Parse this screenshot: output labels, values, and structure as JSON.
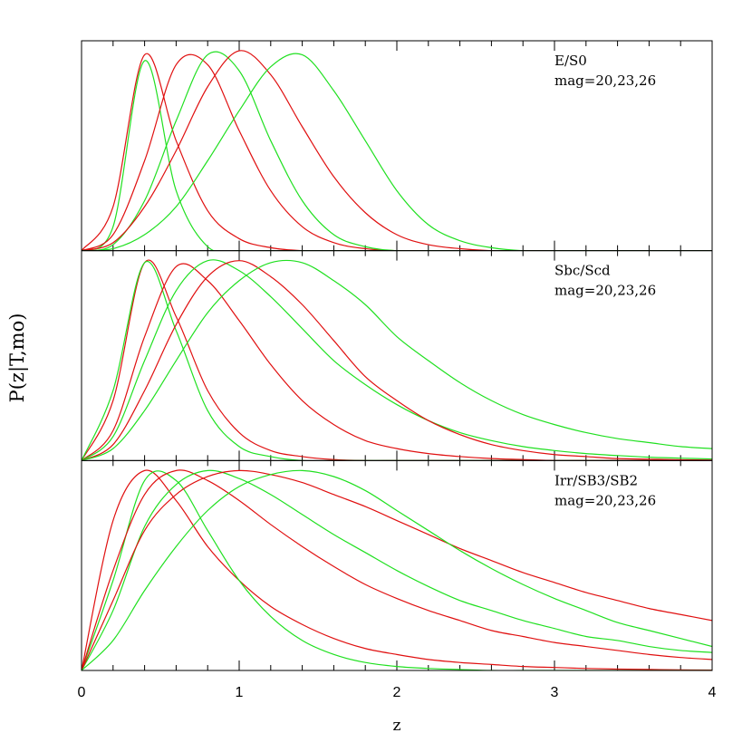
{
  "ylabel": "P(z|T,mo)",
  "xlabel": "z",
  "chart_data": [
    {
      "type": "line",
      "annotation": [
        "E/S0",
        "mag=20,23,26"
      ],
      "x": [
        0,
        0.2,
        0.4,
        0.6,
        0.8,
        1.0,
        1.2,
        1.4,
        1.6,
        1.8,
        2.0,
        2.2,
        2.4,
        2.6,
        2.8,
        3.0,
        3.2,
        3.4,
        3.6,
        3.8,
        4.0
      ],
      "xlim": [
        0,
        4
      ],
      "ylim": [
        0,
        1.05
      ],
      "xticks": [
        0,
        1,
        2,
        3,
        4
      ],
      "xminor_ticks": [
        0.2,
        0.4,
        0.6,
        0.8,
        1.2,
        1.4,
        1.6,
        1.8,
        2.2,
        2.4,
        2.6,
        2.8,
        3.2,
        3.4,
        3.6,
        3.8
      ],
      "series": [
        {
          "color": "#e01010",
          "values": [
            0,
            0.22,
            0.98,
            0.55,
            0.2,
            0.06,
            0.015,
            0,
            0,
            0,
            0,
            0,
            0,
            0,
            0,
            0,
            0,
            0,
            0,
            0,
            0
          ]
        },
        {
          "color": "#20e020",
          "values": [
            0,
            0.12,
            0.95,
            0.3,
            0.02,
            0,
            0,
            0,
            0,
            0,
            0,
            0,
            0,
            0,
            0,
            0,
            0,
            0,
            0,
            0,
            0
          ]
        },
        {
          "color": "#e01010",
          "values": [
            0,
            0.08,
            0.45,
            0.93,
            0.93,
            0.6,
            0.3,
            0.12,
            0.04,
            0.01,
            0,
            0,
            0,
            0,
            0,
            0,
            0,
            0,
            0,
            0,
            0
          ]
        },
        {
          "color": "#20e020",
          "values": [
            0,
            0.03,
            0.25,
            0.65,
            0.98,
            0.9,
            0.55,
            0.25,
            0.08,
            0.02,
            0,
            0,
            0,
            0,
            0,
            0,
            0,
            0,
            0,
            0,
            0
          ]
        },
        {
          "color": "#e01010",
          "values": [
            0,
            0.04,
            0.22,
            0.5,
            0.82,
            1.0,
            0.88,
            0.62,
            0.37,
            0.19,
            0.08,
            0.03,
            0.01,
            0,
            0,
            0,
            0,
            0,
            0,
            0,
            0
          ]
        },
        {
          "color": "#20e020",
          "values": [
            0,
            0.01,
            0.08,
            0.22,
            0.45,
            0.7,
            0.92,
            0.98,
            0.8,
            0.55,
            0.3,
            0.13,
            0.05,
            0.015,
            0,
            0,
            0,
            0,
            0,
            0,
            0
          ]
        }
      ]
    },
    {
      "type": "line",
      "annotation": [
        "Sbc/Scd",
        "mag=20,23,26"
      ],
      "x": [
        0,
        0.2,
        0.4,
        0.6,
        0.8,
        1.0,
        1.2,
        1.4,
        1.6,
        1.8,
        2.0,
        2.2,
        2.4,
        2.6,
        2.8,
        3.0,
        3.2,
        3.4,
        3.6,
        3.8,
        4.0
      ],
      "xlim": [
        0,
        4
      ],
      "ylim": [
        0,
        1.05
      ],
      "xticks": [
        0,
        1,
        2,
        3,
        4
      ],
      "xminor_ticks": [
        0.2,
        0.4,
        0.6,
        0.8,
        1.2,
        1.4,
        1.6,
        1.8,
        2.2,
        2.4,
        2.6,
        2.8,
        3.2,
        3.4,
        3.6,
        3.8
      ],
      "series": [
        {
          "color": "#e01010",
          "values": [
            0,
            0.3,
            0.99,
            0.72,
            0.35,
            0.14,
            0.05,
            0.02,
            0.005,
            0,
            0,
            0,
            0,
            0,
            0,
            0,
            0,
            0,
            0,
            0,
            0
          ]
        },
        {
          "color": "#20e020",
          "values": [
            0,
            0.35,
            0.99,
            0.65,
            0.25,
            0.07,
            0.02,
            0,
            0,
            0,
            0,
            0,
            0,
            0,
            0,
            0,
            0,
            0,
            0,
            0,
            0
          ]
        },
        {
          "color": "#e01010",
          "values": [
            0,
            0.15,
            0.62,
            0.97,
            0.9,
            0.7,
            0.48,
            0.3,
            0.18,
            0.1,
            0.06,
            0.035,
            0.02,
            0.01,
            0.005,
            0,
            0,
            0,
            0,
            0,
            0
          ]
        },
        {
          "color": "#20e020",
          "values": [
            0,
            0.12,
            0.5,
            0.85,
            1.0,
            0.95,
            0.82,
            0.66,
            0.5,
            0.38,
            0.28,
            0.2,
            0.14,
            0.1,
            0.07,
            0.05,
            0.035,
            0.025,
            0.017,
            0.012,
            0.008
          ]
        },
        {
          "color": "#e01010",
          "values": [
            0,
            0.08,
            0.35,
            0.68,
            0.92,
            1.0,
            0.92,
            0.78,
            0.6,
            0.42,
            0.3,
            0.2,
            0.13,
            0.08,
            0.05,
            0.03,
            0.02,
            0.01,
            0.007,
            0.004,
            0.002
          ]
        },
        {
          "color": "#20e020",
          "values": [
            0,
            0.06,
            0.25,
            0.5,
            0.74,
            0.9,
            0.99,
            0.99,
            0.9,
            0.78,
            0.62,
            0.5,
            0.39,
            0.3,
            0.23,
            0.18,
            0.14,
            0.11,
            0.09,
            0.07,
            0.06
          ]
        }
      ]
    },
    {
      "type": "line",
      "annotation": [
        "Irr/SB3/SB2",
        "mag=20,23,26"
      ],
      "x": [
        0,
        0.2,
        0.4,
        0.6,
        0.8,
        1.0,
        1.2,
        1.4,
        1.6,
        1.8,
        2.0,
        2.2,
        2.4,
        2.6,
        2.8,
        3.0,
        3.2,
        3.4,
        3.6,
        3.8,
        4.0
      ],
      "xlim": [
        0,
        4
      ],
      "ylim": [
        0,
        1.05
      ],
      "xticks": [
        0,
        1,
        2,
        3,
        4
      ],
      "xminor_ticks": [
        0.2,
        0.4,
        0.6,
        0.8,
        1.2,
        1.4,
        1.6,
        1.8,
        2.2,
        2.4,
        2.6,
        2.8,
        3.2,
        3.4,
        3.6,
        3.8
      ],
      "series": [
        {
          "color": "#e01010",
          "values": [
            0,
            0.75,
            1.0,
            0.85,
            0.62,
            0.45,
            0.32,
            0.23,
            0.16,
            0.11,
            0.08,
            0.055,
            0.04,
            0.03,
            0.02,
            0.015,
            0.01,
            0.007,
            0.005,
            0.003,
            0.002
          ]
        },
        {
          "color": "#20e020",
          "values": [
            0,
            0.45,
            0.95,
            0.95,
            0.7,
            0.45,
            0.27,
            0.15,
            0.08,
            0.04,
            0.02,
            0.01,
            0.005,
            0,
            0,
            0,
            0,
            0,
            0,
            0,
            0
          ]
        },
        {
          "color": "#e01010",
          "values": [
            0,
            0.5,
            0.88,
            1.0,
            0.95,
            0.85,
            0.73,
            0.62,
            0.52,
            0.43,
            0.36,
            0.3,
            0.25,
            0.2,
            0.17,
            0.14,
            0.12,
            0.1,
            0.08,
            0.065,
            0.055
          ]
        },
        {
          "color": "#20e020",
          "values": [
            0,
            0.3,
            0.72,
            0.93,
            1.0,
            0.96,
            0.88,
            0.78,
            0.68,
            0.59,
            0.5,
            0.42,
            0.35,
            0.3,
            0.25,
            0.21,
            0.17,
            0.15,
            0.12,
            0.1,
            0.09
          ]
        },
        {
          "color": "#e01010",
          "values": [
            0,
            0.35,
            0.7,
            0.88,
            0.97,
            1.0,
            0.98,
            0.94,
            0.88,
            0.82,
            0.75,
            0.68,
            0.61,
            0.55,
            0.49,
            0.44,
            0.39,
            0.35,
            0.31,
            0.28,
            0.25
          ]
        },
        {
          "color": "#20e020",
          "values": [
            0,
            0.15,
            0.4,
            0.62,
            0.8,
            0.92,
            0.98,
            1.0,
            0.97,
            0.9,
            0.8,
            0.7,
            0.6,
            0.51,
            0.43,
            0.36,
            0.3,
            0.24,
            0.2,
            0.16,
            0.12
          ]
        }
      ]
    }
  ]
}
